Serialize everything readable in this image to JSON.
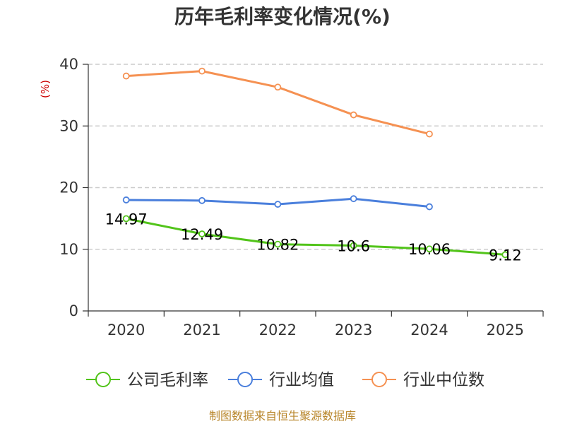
{
  "chart_data": {
    "type": "line",
    "title": "历年毛利率变化情况(%)",
    "xlabel": "",
    "ylabel": "(%)",
    "categories": [
      "2020",
      "2021",
      "2022",
      "2023",
      "2024",
      "2025"
    ],
    "ylim": [
      0,
      40
    ],
    "yticks": [
      0,
      10,
      20,
      30,
      40
    ],
    "grid": "horizontal-dashed",
    "legend_position": "bottom",
    "series": [
      {
        "name": "公司毛利率",
        "color": "#52c41a",
        "values": [
          14.97,
          12.49,
          10.82,
          10.6,
          10.06,
          9.12
        ],
        "labels": [
          "14.97",
          "12.49",
          "10.82",
          "10.6",
          "10.06",
          "9.12"
        ]
      },
      {
        "name": "行业均值",
        "color": "#4a7fdc",
        "values": [
          18.0,
          17.9,
          17.3,
          18.2,
          16.9,
          null
        ]
      },
      {
        "name": "行业中位数",
        "color": "#f59152",
        "values": [
          38.1,
          38.9,
          36.3,
          31.8,
          28.7,
          null
        ]
      }
    ]
  },
  "source": "制图数据来自恒生聚源数据库"
}
